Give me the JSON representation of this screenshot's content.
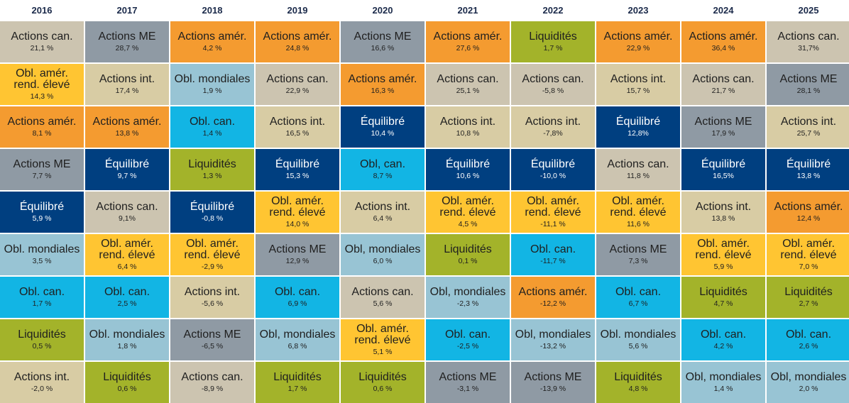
{
  "chart_data": {
    "type": "table",
    "years": [
      "2016",
      "2017",
      "2018",
      "2019",
      "2020",
      "2021",
      "2022",
      "2023",
      "2024",
      "2025"
    ],
    "colors": {
      "Actions can.": "#ccc4b0",
      "Actions ME": "#8f9aa4",
      "Actions amér.": "#f49b30",
      "Actions int.": "#d8cca4",
      "Liquidités": "#a3b32a",
      "Obl. can.": "#12b5e4",
      "Obl. mondiales": "#98c4d4",
      "Obl. amér. rend. élevé": "#ffc532",
      "Équilibré": "#003f80"
    },
    "text_colors": {
      "Équilibré": "#ffffff"
    },
    "columns": [
      [
        {
          "name": "Actions can.",
          "label": "Actions can.",
          "value": "21,1 %"
        },
        {
          "name": "Obl. amér. rend. élevé",
          "label": "Obl. amér.\nrend. élevé",
          "value": "14,3 %"
        },
        {
          "name": "Actions amér.",
          "label": "Actions amér.",
          "value": "8,1 %"
        },
        {
          "name": "Actions ME",
          "label": "Actions ME",
          "value": "7,7 %"
        },
        {
          "name": "Équilibré",
          "label": "Équilibré",
          "value": "5,9 %"
        },
        {
          "name": "Obl. mondiales",
          "label": "Obl. mondiales",
          "value": "3,5 %"
        },
        {
          "name": "Obl. can.",
          "label": "Obl. can.",
          "value": "1,7 %"
        },
        {
          "name": "Liquidités",
          "label": "Liquidités",
          "value": "0,5 %"
        },
        {
          "name": "Actions int.",
          "label": "Actions int.",
          "value": "-2,0 %"
        }
      ],
      [
        {
          "name": "Actions ME",
          "label": "Actions ME",
          "value": "28,7 %"
        },
        {
          "name": "Actions int.",
          "label": "Actions int.",
          "value": "17,4 %"
        },
        {
          "name": "Actions amér.",
          "label": "Actions amér.",
          "value": "13,8 %"
        },
        {
          "name": "Équilibré",
          "label": "Équilibré",
          "value": "9,7 %"
        },
        {
          "name": "Actions can.",
          "label": "Actions can.",
          "value": "9,1%"
        },
        {
          "name": "Obl. amér. rend. élevé",
          "label": "Obl. amér.\nrend. élevé",
          "value": "6,4 %"
        },
        {
          "name": "Obl. can.",
          "label": "Obl. can.",
          "value": "2,5 %"
        },
        {
          "name": "Obl. mondiales",
          "label": "Obl. mondiales",
          "value": "1,8 %"
        },
        {
          "name": "Liquidités",
          "label": "Liquidités",
          "value": "0,6 %"
        }
      ],
      [
        {
          "name": "Actions amér.",
          "label": "Actions amér.",
          "value": "4,2 %"
        },
        {
          "name": "Obl. mondiales",
          "label": "Obl. mondiales",
          "value": "1,9 %"
        },
        {
          "name": "Obl. can.",
          "label": "Obl. can.",
          "value": "1,4 %"
        },
        {
          "name": "Liquidités",
          "label": "Liquidités",
          "value": "1,3 %"
        },
        {
          "name": "Équilibré",
          "label": "Équilibré",
          "value": "-0,8 %"
        },
        {
          "name": "Obl. amér. rend. élevé",
          "label": "Obl. amér.\nrend. élevé",
          "value": "-2,9 %"
        },
        {
          "name": "Actions int.",
          "label": "Actions int.",
          "value": "-5,6 %"
        },
        {
          "name": "Actions ME",
          "label": "Actions ME",
          "value": "-6,5 %"
        },
        {
          "name": "Actions can.",
          "label": "Actions can.",
          "value": "-8,9 %"
        }
      ],
      [
        {
          "name": "Actions amér.",
          "label": "Actions amér.",
          "value": "24,8 %"
        },
        {
          "name": "Actions can.",
          "label": "Actions can.",
          "value": "22,9 %"
        },
        {
          "name": "Actions int.",
          "label": "Actions int.",
          "value": "16,5 %"
        },
        {
          "name": "Équilibré",
          "label": "Équilibré",
          "value": "15,3 %"
        },
        {
          "name": "Obl. amér. rend. élevé",
          "label": "Obl. amér.\nrend. élevé",
          "value": "14,0 %"
        },
        {
          "name": "Actions ME",
          "label": "Actions ME",
          "value": "12,9 %"
        },
        {
          "name": "Obl. can.",
          "label": "Obl. can.",
          "value": "6,9 %"
        },
        {
          "name": "Obl. mondiales",
          "label": "Obl, mondiales",
          "value": "6,8 %"
        },
        {
          "name": "Liquidités",
          "label": "Liquidités",
          "value": "1,7 %"
        }
      ],
      [
        {
          "name": "Actions ME",
          "label": "Actions ME",
          "value": "16,6 %"
        },
        {
          "name": "Actions amér.",
          "label": "Actions amér.",
          "value": "16,3 %"
        },
        {
          "name": "Équilibré",
          "label": "Équilibré",
          "value": "10,4 %"
        },
        {
          "name": "Obl. can.",
          "label": "Obl, can.",
          "value": "8,7 %"
        },
        {
          "name": "Actions int.",
          "label": "Actions int.",
          "value": "6,4 %"
        },
        {
          "name": "Obl. mondiales",
          "label": "Obl, mondiales",
          "value": "6,0 %"
        },
        {
          "name": "Actions can.",
          "label": "Actions can.",
          "value": "5,6 %"
        },
        {
          "name": "Obl. amér. rend. élevé",
          "label": "Obl. amér.\nrend. élevé",
          "value": "5,1 %"
        },
        {
          "name": "Liquidités",
          "label": "Liquidités",
          "value": "0,6 %"
        }
      ],
      [
        {
          "name": "Actions amér.",
          "label": "Actions amér.",
          "value": "27,6 %"
        },
        {
          "name": "Actions can.",
          "label": "Actions can.",
          "value": "25,1 %"
        },
        {
          "name": "Actions int.",
          "label": "Actions int.",
          "value": "10,8 %"
        },
        {
          "name": "Équilibré",
          "label": "Équilibré",
          "value": "10,6 %"
        },
        {
          "name": "Obl. amér. rend. élevé",
          "label": "Obl. amér.\nrend. élevé",
          "value": "4,5 %"
        },
        {
          "name": "Liquidités",
          "label": "Liquidités",
          "value": "0,1 %"
        },
        {
          "name": "Obl. mondiales",
          "label": "Obl, mondiales",
          "value": "-2,3 %"
        },
        {
          "name": "Obl. can.",
          "label": "Obl. can.",
          "value": "-2,5 %"
        },
        {
          "name": "Actions ME",
          "label": "Actions ME",
          "value": "-3,1 %"
        }
      ],
      [
        {
          "name": "Liquidités",
          "label": "Liquidités",
          "value": "1,7 %"
        },
        {
          "name": "Actions can.",
          "label": "Actions can.",
          "value": "-5,8 %"
        },
        {
          "name": "Actions int.",
          "label": "Actions int.",
          "value": "-7,8%"
        },
        {
          "name": "Équilibré",
          "label": "Équilibré",
          "value": "-10,0 %"
        },
        {
          "name": "Obl. amér. rend. élevé",
          "label": "Obl. amér.\nrend. élevé",
          "value": "-11,1 %"
        },
        {
          "name": "Obl. can.",
          "label": "Obl. can.",
          "value": "-11,7 %"
        },
        {
          "name": "Actions amér.",
          "label": "Actions amér.",
          "value": "-12,2 %"
        },
        {
          "name": "Obl. mondiales",
          "label": "Obl, mondiales",
          "value": "-13,2 %"
        },
        {
          "name": "Actions ME",
          "label": "Actions ME",
          "value": "-13,9 %"
        }
      ],
      [
        {
          "name": "Actions amér.",
          "label": "Actions amér.",
          "value": "22,9 %"
        },
        {
          "name": "Actions int.",
          "label": "Actions int.",
          "value": "15,7 %"
        },
        {
          "name": "Équilibré",
          "label": "Équilibré",
          "value": "12,8%"
        },
        {
          "name": "Actions can.",
          "label": "Actions can.",
          "value": "11,8 %"
        },
        {
          "name": "Obl. amér. rend. élevé",
          "label": "Obl. amér.\nrend. élevé",
          "value": "11,6 %"
        },
        {
          "name": "Actions ME",
          "label": "Actions ME",
          "value": "7,3 %"
        },
        {
          "name": "Obl. can.",
          "label": "Obl. can.",
          "value": "6,7 %"
        },
        {
          "name": "Obl. mondiales",
          "label": "Obl. mondiales",
          "value": "5,6 %"
        },
        {
          "name": "Liquidités",
          "label": "Liquidités",
          "value": "4,8 %"
        }
      ],
      [
        {
          "name": "Actions amér.",
          "label": "Actions amér.",
          "value": "36,4 %"
        },
        {
          "name": "Actions can.",
          "label": "Actions can.",
          "value": "21,7 %"
        },
        {
          "name": "Actions ME",
          "label": "Actions ME",
          "value": "17,9 %"
        },
        {
          "name": "Équilibré",
          "label": "Équilibré",
          "value": "16,5%"
        },
        {
          "name": "Actions int.",
          "label": "Actions int.",
          "value": "13,8 %"
        },
        {
          "name": "Obl. amér. rend. élevé",
          "label": "Obl. amér.\nrend. élevé",
          "value": "5,9 %"
        },
        {
          "name": "Liquidités",
          "label": "Liquidités",
          "value": "4,7 %"
        },
        {
          "name": "Obl. can.",
          "label": "Obl. can.",
          "value": "4,2 %"
        },
        {
          "name": "Obl. mondiales",
          "label": "Obl, mondiales",
          "value": "1,4 %"
        }
      ],
      [
        {
          "name": "Actions can.",
          "label": "Actions can.",
          "value": "31,7%"
        },
        {
          "name": "Actions ME",
          "label": "Actions ME",
          "value": "28,1 %"
        },
        {
          "name": "Actions int.",
          "label": "Actions int.",
          "value": "25,7 %"
        },
        {
          "name": "Équilibré",
          "label": "Équilibré",
          "value": "13,8 %"
        },
        {
          "name": "Actions amér.",
          "label": "Actions amér.",
          "value": "12,4 %"
        },
        {
          "name": "Obl. amér. rend. élevé",
          "label": "Obl. amér.\nrend. élevé",
          "value": "7,0 %"
        },
        {
          "name": "Liquidités",
          "label": "Liquidités",
          "value": "2,7 %"
        },
        {
          "name": "Obl. can.",
          "label": "Obl. can.",
          "value": "2,6 %"
        },
        {
          "name": "Obl. mondiales",
          "label": "Obl, mondiales",
          "value": "2,0 %"
        }
      ]
    ]
  }
}
